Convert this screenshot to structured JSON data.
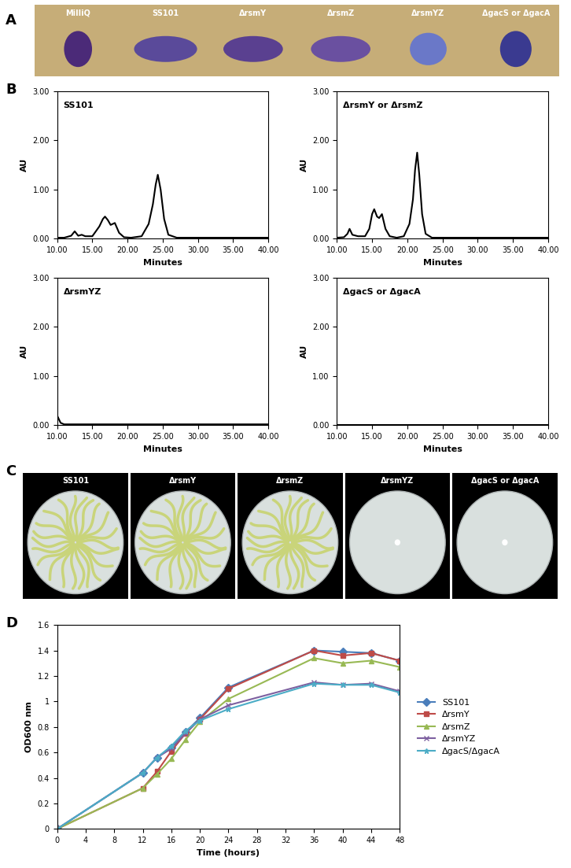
{
  "panel_labels": [
    "A",
    "B",
    "C",
    "D"
  ],
  "droplets": {
    "labels": [
      "MilliQ",
      "SS101",
      "ΔrsmY",
      "ΔrsmZ",
      "ΔrsmYZ",
      "ΔgacS or ΔgacA"
    ]
  },
  "plates": {
    "labels": [
      "SS101",
      "ΔrsmY",
      "ΔrsmZ",
      "ΔrsmYZ",
      "ΔgacS or ΔgacA"
    ]
  },
  "chart_data": [
    {
      "type": "line",
      "title": "SS101",
      "x_label": "Minutes",
      "y_label": "AU",
      "color": "#000000",
      "x": [
        10,
        11,
        12,
        12.5,
        13,
        13.5,
        14,
        15,
        16,
        16.5,
        16.8,
        17.2,
        17.6,
        18.2,
        18.8,
        19.5,
        20.5,
        22,
        23,
        23.6,
        24,
        24.3,
        24.7,
        25.2,
        25.8,
        27,
        30,
        35,
        40
      ],
      "values": [
        0.02,
        0.02,
        0.06,
        0.15,
        0.06,
        0.08,
        0.05,
        0.05,
        0.25,
        0.4,
        0.45,
        0.38,
        0.28,
        0.32,
        0.12,
        0.03,
        0.02,
        0.05,
        0.3,
        0.7,
        1.1,
        1.3,
        1.0,
        0.4,
        0.08,
        0.02,
        0.02,
        0.02,
        0.02
      ],
      "xlim": [
        10,
        40
      ],
      "ylim": [
        0,
        3
      ],
      "xticks": [
        {
          "value": 10,
          "label": "10.00"
        },
        {
          "value": 15,
          "label": "15.00"
        },
        {
          "value": 20,
          "label": "20.00"
        },
        {
          "value": 25,
          "label": "25.00"
        },
        {
          "value": 30,
          "label": "30.00"
        },
        {
          "value": 35,
          "label": "35.00"
        },
        {
          "value": 40,
          "label": "40.00"
        }
      ],
      "yticks": [
        {
          "value": 0,
          "label": "0.00"
        },
        {
          "value": 1,
          "label": "1.00"
        },
        {
          "value": 2,
          "label": "2.00"
        },
        {
          "value": 3,
          "label": "3.00"
        }
      ],
      "grid": false
    },
    {
      "type": "line",
      "title": "ΔrsmY or ΔrsmZ",
      "x_label": "Minutes",
      "y_label": "AU",
      "color": "#000000",
      "x": [
        10,
        11,
        11.5,
        11.8,
        12.2,
        13,
        14,
        14.6,
        15,
        15.3,
        15.7,
        16,
        16.4,
        16.9,
        17.5,
        18.5,
        19.5,
        20.3,
        20.8,
        21.1,
        21.4,
        21.7,
        22.1,
        22.6,
        23.5,
        25,
        30,
        35,
        40
      ],
      "values": [
        0.02,
        0.03,
        0.1,
        0.2,
        0.08,
        0.05,
        0.05,
        0.2,
        0.5,
        0.6,
        0.45,
        0.42,
        0.5,
        0.2,
        0.05,
        0.02,
        0.05,
        0.3,
        0.8,
        1.4,
        1.75,
        1.3,
        0.5,
        0.1,
        0.02,
        0.02,
        0.02,
        0.02,
        0.02
      ],
      "xlim": [
        10,
        40
      ],
      "ylim": [
        0,
        3
      ],
      "xticks": [
        {
          "value": 10,
          "label": "10.00"
        },
        {
          "value": 15,
          "label": "15.00"
        },
        {
          "value": 20,
          "label": "20.00"
        },
        {
          "value": 25,
          "label": "25.00"
        },
        {
          "value": 30,
          "label": "30.00"
        },
        {
          "value": 35,
          "label": "35.00"
        },
        {
          "value": 40,
          "label": "40.00"
        }
      ],
      "yticks": [
        {
          "value": 0,
          "label": "0.00"
        },
        {
          "value": 1,
          "label": "1.00"
        },
        {
          "value": 2,
          "label": "2.00"
        },
        {
          "value": 3,
          "label": "3.00"
        }
      ],
      "grid": false
    },
    {
      "type": "line",
      "title": "ΔrsmYZ",
      "x_label": "Minutes",
      "y_label": "AU",
      "color": "#000000",
      "x": [
        10,
        10.5,
        11,
        15,
        20,
        25,
        30,
        35,
        40
      ],
      "values": [
        0.2,
        0.05,
        0.02,
        0.02,
        0.02,
        0.02,
        0.02,
        0.02,
        0.02
      ],
      "xlim": [
        10,
        40
      ],
      "ylim": [
        0,
        3
      ],
      "xticks": [
        {
          "value": 10,
          "label": "10.00"
        },
        {
          "value": 15,
          "label": "15.00"
        },
        {
          "value": 20,
          "label": "20.00"
        },
        {
          "value": 25,
          "label": "25.00"
        },
        {
          "value": 30,
          "label": "30.00"
        },
        {
          "value": 35,
          "label": "35.00"
        },
        {
          "value": 40,
          "label": "40.00"
        }
      ],
      "yticks": [
        {
          "value": 0,
          "label": "0.00"
        },
        {
          "value": 1,
          "label": "1.00"
        },
        {
          "value": 2,
          "label": "2.00"
        },
        {
          "value": 3,
          "label": "3.00"
        }
      ],
      "grid": false
    },
    {
      "type": "line",
      "title": "ΔgacS or ΔgacA",
      "x_label": "Minutes",
      "y_label": "AU",
      "color": "#000000",
      "x": [
        10,
        15,
        20,
        25,
        30,
        35,
        40
      ],
      "values": [
        0.01,
        0.01,
        0.01,
        0.01,
        0.01,
        0.01,
        0.01
      ],
      "xlim": [
        10,
        40
      ],
      "ylim": [
        0,
        3
      ],
      "xticks": [
        {
          "value": 10,
          "label": "10.00"
        },
        {
          "value": 15,
          "label": "15.00"
        },
        {
          "value": 20,
          "label": "20.00"
        },
        {
          "value": 25,
          "label": "25.00"
        },
        {
          "value": 30,
          "label": "30.00"
        },
        {
          "value": 35,
          "label": "35.00"
        },
        {
          "value": 40,
          "label": "40.00"
        }
      ],
      "yticks": [
        {
          "value": 0,
          "label": "0.00"
        },
        {
          "value": 1,
          "label": "1.00"
        },
        {
          "value": 2,
          "label": "2.00"
        },
        {
          "value": 3,
          "label": "3.00"
        }
      ],
      "grid": false
    },
    {
      "type": "line",
      "x_label": "Time (hours)",
      "y_label": "OD600 nm",
      "x": [
        0,
        12,
        14,
        16,
        18,
        20,
        24,
        36,
        40,
        44,
        48
      ],
      "series": [
        {
          "name": "SS101",
          "color": "#4a7ebb",
          "marker": "diamond",
          "values": [
            0,
            0.44,
            0.56,
            0.64,
            0.76,
            0.87,
            1.11,
            1.4,
            1.39,
            1.38,
            1.32
          ]
        },
        {
          "name": "ΔrsmY",
          "color": "#be4b48",
          "marker": "square",
          "values": [
            0,
            0.32,
            0.45,
            0.61,
            0.75,
            0.86,
            1.1,
            1.4,
            1.36,
            1.38,
            1.32
          ]
        },
        {
          "name": "ΔrsmZ",
          "color": "#98b954",
          "marker": "triangle",
          "values": [
            0,
            0.32,
            0.43,
            0.55,
            0.7,
            0.84,
            1.02,
            1.34,
            1.3,
            1.32,
            1.27
          ]
        },
        {
          "name": "ΔrsmYZ",
          "color": "#7d60a0",
          "marker": "x",
          "values": [
            0,
            0.44,
            0.56,
            0.63,
            0.75,
            0.86,
            0.97,
            1.15,
            1.13,
            1.14,
            1.08
          ]
        },
        {
          "name": "ΔgacS/ΔgacA",
          "color": "#4bacc6",
          "marker": "star",
          "values": [
            0,
            0.44,
            0.56,
            0.65,
            0.77,
            0.85,
            0.94,
            1.14,
            1.13,
            1.13,
            1.07
          ]
        }
      ],
      "xlim": [
        0,
        48
      ],
      "ylim": [
        0,
        1.6
      ],
      "xticks": [
        0,
        4,
        8,
        12,
        16,
        20,
        24,
        28,
        32,
        36,
        40,
        44,
        48
      ],
      "yticks": [
        0,
        0.2,
        0.4,
        0.6,
        0.8,
        1,
        1.2,
        1.4,
        1.6
      ],
      "legend": "right",
      "grid": false
    }
  ]
}
